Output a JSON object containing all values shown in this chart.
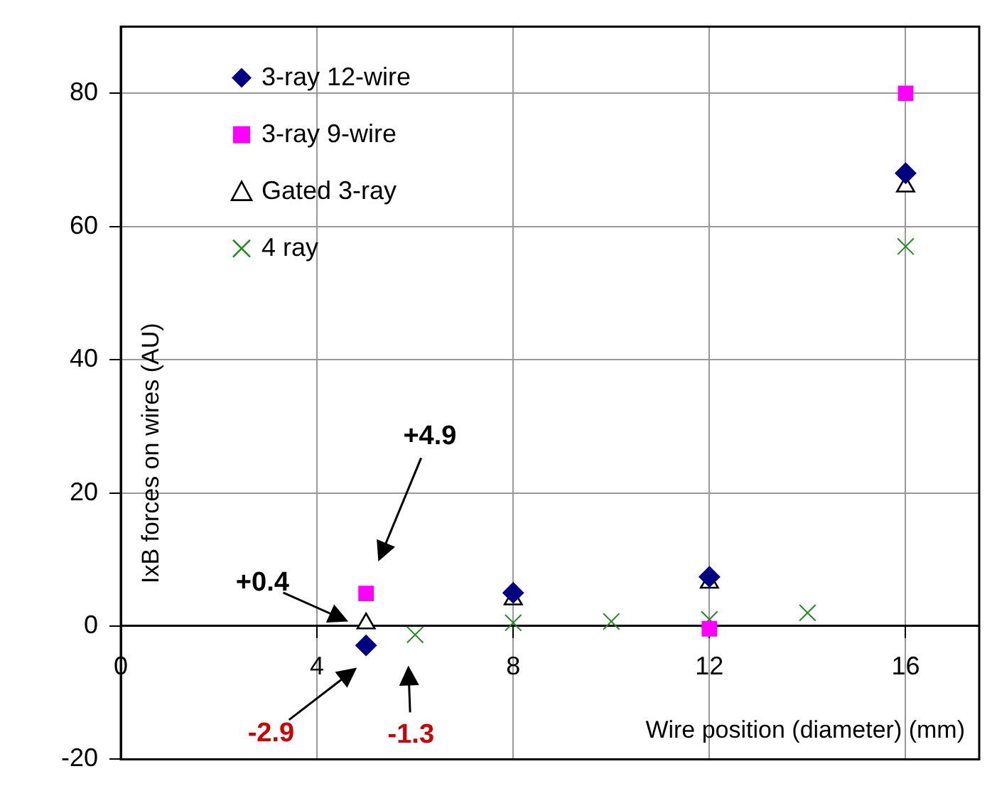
{
  "chart_data": {
    "type": "scatter",
    "xlabel": "Wire position (diameter) (mm)",
    "ylabel": "IxB forces on wires (AU)",
    "xlim": [
      0,
      17.5
    ],
    "xticks": [
      0,
      4,
      8,
      12,
      16
    ],
    "ylim": [
      -20,
      90
    ],
    "yticks": [
      -20,
      0,
      20,
      40,
      60,
      80
    ],
    "grid": true,
    "legend": "top left",
    "series": [
      {
        "name": "3-ray 12-wire",
        "color": "#000080",
        "marker": "diamond",
        "x": [
          5,
          8,
          12,
          16
        ],
        "values": [
          -2.9,
          5,
          7.4,
          68
        ]
      },
      {
        "name": "3-ray 9-wire",
        "color": "#ff00ff",
        "marker": "square",
        "x": [
          5,
          12,
          16
        ],
        "values": [
          4.9,
          -0.4,
          80
        ]
      },
      {
        "name": "Gated 3-ray",
        "color": "#000000",
        "marker": "triangle",
        "x": [
          5,
          8,
          12,
          16
        ],
        "values": [
          0.4,
          4,
          6.5,
          66
        ]
      },
      {
        "name": "4 ray",
        "color": "#228b22",
        "marker": "cross",
        "x": [
          6,
          8,
          10,
          12,
          14,
          16
        ],
        "values": [
          -1.3,
          0.5,
          0.7,
          1,
          2,
          57
        ]
      }
    ],
    "annotations": [
      "+4.9",
      "+0.4",
      "-2.9",
      "-1.3"
    ]
  }
}
